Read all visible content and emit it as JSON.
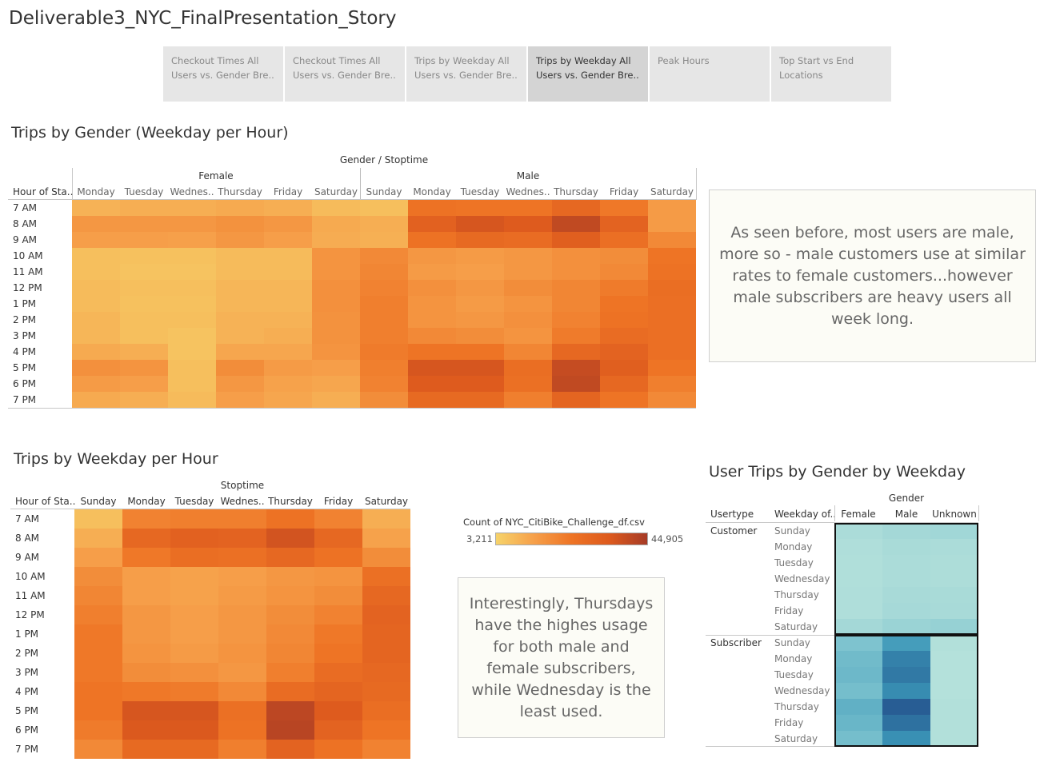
{
  "story": {
    "title": "Deliverable3_NYC_FinalPresentation_Story",
    "tabs": [
      {
        "line1": "Checkout Times All",
        "line2": "Users vs. Gender Bre..",
        "active": false
      },
      {
        "line1": "Checkout Times All",
        "line2": "Users vs. Gender Bre..",
        "active": false
      },
      {
        "line1": "Trips by Weekday All",
        "line2": "Users vs. Gender Bre..",
        "active": false
      },
      {
        "line1": "Trips by Weekday All",
        "line2": "Users vs. Gender Bre..",
        "active": true
      },
      {
        "line1": "Peak Hours",
        "line2": "",
        "active": false
      },
      {
        "line1": "Top Start vs End",
        "line2": "Locations",
        "active": false
      }
    ]
  },
  "heatmap_gender": {
    "title": "Trips by Gender (Weekday per Hour)",
    "header": "Gender / Stoptime",
    "row_header": "Hour of Sta..",
    "groups": [
      "Female",
      "Male"
    ],
    "columns": [
      "Monday",
      "Tuesday",
      "Wednes..",
      "Thursday",
      "Friday",
      "Saturday",
      "Sunday",
      "Monday",
      "Tuesday",
      "Wednes..",
      "Thursday",
      "Friday",
      "Saturday"
    ],
    "hours": [
      "7 AM",
      "8 AM",
      "9 AM",
      "10 AM",
      "11 AM",
      "12 PM",
      "1 PM",
      "2 PM",
      "3 PM",
      "4 PM",
      "5 PM",
      "6 PM",
      "7 PM"
    ],
    "levels": [
      [
        0.16,
        0.18,
        0.18,
        0.2,
        0.18,
        0.12,
        0.1,
        0.52,
        0.5,
        0.5,
        0.62,
        0.48,
        0.28
      ],
      [
        0.3,
        0.3,
        0.3,
        0.33,
        0.3,
        0.2,
        0.18,
        0.68,
        0.78,
        0.74,
        0.88,
        0.66,
        0.28
      ],
      [
        0.26,
        0.26,
        0.25,
        0.3,
        0.26,
        0.19,
        0.17,
        0.52,
        0.6,
        0.58,
        0.7,
        0.55,
        0.38
      ],
      [
        0.1,
        0.09,
        0.09,
        0.12,
        0.12,
        0.32,
        0.38,
        0.3,
        0.28,
        0.3,
        0.34,
        0.36,
        0.5
      ],
      [
        0.1,
        0.08,
        0.08,
        0.12,
        0.12,
        0.32,
        0.4,
        0.28,
        0.26,
        0.3,
        0.34,
        0.38,
        0.52
      ],
      [
        0.12,
        0.1,
        0.1,
        0.14,
        0.14,
        0.34,
        0.42,
        0.34,
        0.3,
        0.36,
        0.4,
        0.46,
        0.56
      ],
      [
        0.12,
        0.09,
        0.09,
        0.14,
        0.14,
        0.34,
        0.44,
        0.32,
        0.28,
        0.32,
        0.4,
        0.5,
        0.55
      ],
      [
        0.14,
        0.1,
        0.1,
        0.16,
        0.16,
        0.33,
        0.44,
        0.32,
        0.3,
        0.34,
        0.42,
        0.52,
        0.55
      ],
      [
        0.14,
        0.1,
        0.08,
        0.16,
        0.18,
        0.33,
        0.44,
        0.38,
        0.36,
        0.32,
        0.46,
        0.58,
        0.55
      ],
      [
        0.2,
        0.18,
        0.08,
        0.22,
        0.22,
        0.32,
        0.46,
        0.5,
        0.5,
        0.4,
        0.62,
        0.66,
        0.55
      ],
      [
        0.34,
        0.32,
        0.1,
        0.36,
        0.28,
        0.26,
        0.44,
        0.78,
        0.78,
        0.56,
        0.86,
        0.7,
        0.5
      ],
      [
        0.28,
        0.26,
        0.1,
        0.3,
        0.24,
        0.22,
        0.42,
        0.74,
        0.74,
        0.54,
        0.88,
        0.62,
        0.44
      ],
      [
        0.2,
        0.18,
        0.12,
        0.26,
        0.22,
        0.18,
        0.36,
        0.6,
        0.6,
        0.44,
        0.64,
        0.5,
        0.38
      ]
    ]
  },
  "note_gender": "As seen before, most users are male, more so - male customers use at similar rates to female customers...however male subscribers are heavy users all week long.",
  "heatmap_weekday": {
    "title": "Trips by Weekday per Hour",
    "header": "Stoptime",
    "row_header": "Hour of Sta..",
    "columns": [
      "Sunday",
      "Monday",
      "Tuesday",
      "Wednes..",
      "Thursday",
      "Friday",
      "Saturday"
    ],
    "hours": [
      "7 AM",
      "8 AM",
      "9 AM",
      "10 AM",
      "11 AM",
      "12 PM",
      "1 PM",
      "2 PM",
      "3 PM",
      "4 PM",
      "5 PM",
      "6 PM",
      "7 PM"
    ],
    "levels": [
      [
        0.1,
        0.42,
        0.44,
        0.44,
        0.52,
        0.42,
        0.18
      ],
      [
        0.18,
        0.62,
        0.68,
        0.66,
        0.8,
        0.62,
        0.24
      ],
      [
        0.26,
        0.48,
        0.56,
        0.54,
        0.62,
        0.52,
        0.36
      ],
      [
        0.36,
        0.26,
        0.24,
        0.26,
        0.3,
        0.32,
        0.54
      ],
      [
        0.4,
        0.26,
        0.24,
        0.28,
        0.32,
        0.36,
        0.62
      ],
      [
        0.44,
        0.3,
        0.26,
        0.3,
        0.36,
        0.42,
        0.66
      ],
      [
        0.48,
        0.3,
        0.26,
        0.3,
        0.38,
        0.48,
        0.64
      ],
      [
        0.48,
        0.32,
        0.28,
        0.32,
        0.4,
        0.5,
        0.64
      ],
      [
        0.48,
        0.36,
        0.34,
        0.3,
        0.44,
        0.58,
        0.62
      ],
      [
        0.5,
        0.48,
        0.46,
        0.38,
        0.58,
        0.64,
        0.6
      ],
      [
        0.5,
        0.78,
        0.78,
        0.54,
        0.9,
        0.74,
        0.56
      ],
      [
        0.46,
        0.76,
        0.76,
        0.52,
        0.92,
        0.66,
        0.5
      ],
      [
        0.38,
        0.6,
        0.6,
        0.44,
        0.66,
        0.52,
        0.42
      ]
    ]
  },
  "legend": {
    "title": "Count of NYC_CitiBike_Challenge_df.csv",
    "min_label": "3,211",
    "max_label": "44,905",
    "min_value": 3211,
    "max_value": 44905,
    "colors": [
      "#f6d36a",
      "#f6a04a",
      "#ee7425",
      "#dd5a1e",
      "#a63b26"
    ]
  },
  "note_thursday": "Interestingly, Thursdays have the highes usage for both male and female subscribers, while Wednesday is the least used.",
  "user_trips": {
    "title": "User Trips by Gender by Weekday",
    "header": "Gender",
    "usertype_header": "Usertype",
    "weekday_header": "Weekday of..",
    "columns": [
      "Female",
      "Male",
      "Unknown"
    ],
    "groups": [
      {
        "usertype": "Customer",
        "weekdays": [
          "Sunday",
          "Monday",
          "Tuesday",
          "Wednesday",
          "Thursday",
          "Friday",
          "Saturday"
        ],
        "levels": [
          [
            0.08,
            0.12,
            0.14
          ],
          [
            0.06,
            0.09,
            0.08
          ],
          [
            0.05,
            0.08,
            0.07
          ],
          [
            0.05,
            0.08,
            0.07
          ],
          [
            0.06,
            0.1,
            0.09
          ],
          [
            0.06,
            0.11,
            0.1
          ],
          [
            0.12,
            0.18,
            0.2
          ]
        ]
      },
      {
        "usertype": "Subscriber",
        "weekdays": [
          "Sunday",
          "Monday",
          "Tuesday",
          "Wednesday",
          "Thursday",
          "Friday",
          "Saturday"
        ],
        "levels": [
          [
            0.34,
            0.62,
            0.04
          ],
          [
            0.4,
            0.78,
            0.03
          ],
          [
            0.42,
            0.82,
            0.03
          ],
          [
            0.38,
            0.72,
            0.03
          ],
          [
            0.48,
            0.96,
            0.04
          ],
          [
            0.44,
            0.86,
            0.04
          ],
          [
            0.38,
            0.7,
            0.04
          ]
        ]
      }
    ],
    "colors": [
      "#b9e4dc",
      "#7fc4cf",
      "#3b97b8",
      "#25558f"
    ]
  }
}
